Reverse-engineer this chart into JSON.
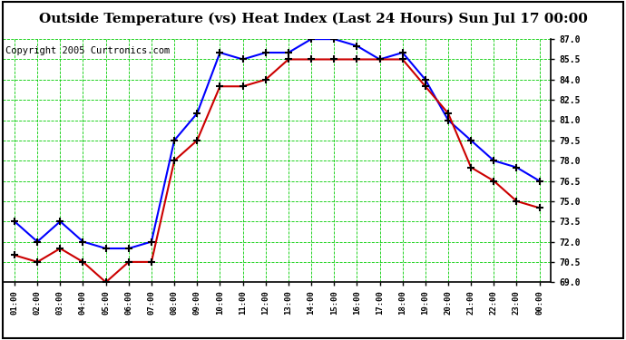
{
  "title": "Outside Temperature (vs) Heat Index (Last 24 Hours) Sun Jul 17 00:00",
  "copyright": "Copyright 2005 Curtronics.com",
  "x_labels": [
    "01:00",
    "02:00",
    "03:00",
    "04:00",
    "05:00",
    "06:00",
    "07:00",
    "08:00",
    "09:00",
    "10:00",
    "11:00",
    "12:00",
    "13:00",
    "14:00",
    "15:00",
    "16:00",
    "17:00",
    "18:00",
    "19:00",
    "20:00",
    "21:00",
    "22:00",
    "23:00",
    "00:00"
  ],
  "blue_data": [
    73.5,
    72.0,
    73.5,
    72.0,
    71.5,
    71.5,
    72.0,
    79.5,
    81.5,
    86.0,
    85.5,
    86.0,
    86.0,
    87.0,
    87.0,
    86.5,
    85.5,
    86.0,
    84.0,
    81.0,
    79.5,
    78.0,
    77.5,
    76.5
  ],
  "red_data": [
    71.0,
    70.5,
    71.5,
    70.5,
    69.0,
    70.5,
    70.5,
    78.0,
    79.5,
    83.5,
    83.5,
    84.0,
    85.5,
    85.5,
    85.5,
    85.5,
    85.5,
    85.5,
    83.5,
    81.5,
    77.5,
    76.5,
    75.0,
    74.5
  ],
  "ylim": [
    69.0,
    87.0
  ],
  "ytick_values": [
    69.0,
    70.5,
    72.0,
    73.5,
    75.0,
    76.5,
    78.0,
    79.5,
    81.0,
    82.5,
    84.0,
    85.5,
    87.0
  ],
  "background_color": "#ffffff",
  "grid_color": "#00cc00",
  "blue_color": "#0000ff",
  "red_color": "#cc0000",
  "title_fontsize": 11,
  "copyright_fontsize": 7.5
}
